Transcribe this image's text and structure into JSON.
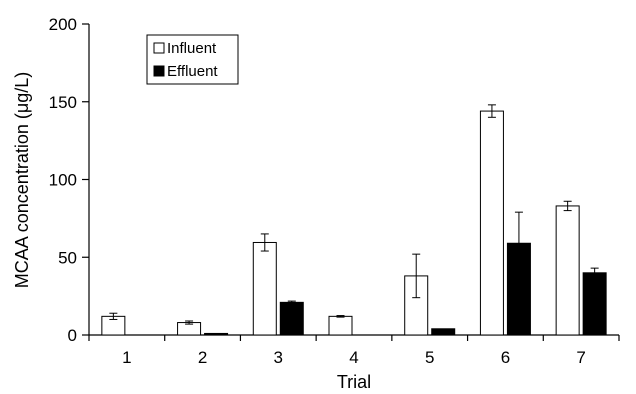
{
  "chart_data": {
    "type": "bar",
    "title": "",
    "xlabel": "Trial",
    "ylabel": "MCAA concentration (μg/L)",
    "ylim": [
      0,
      200
    ],
    "yticks": [
      0,
      50,
      100,
      150,
      200
    ],
    "categories": [
      "1",
      "2",
      "3",
      "4",
      "5",
      "6",
      "7"
    ],
    "grid": false,
    "legend_position": "top-left",
    "series": [
      {
        "name": "Influent",
        "color": "#ffffff",
        "values": [
          12,
          8,
          59.5,
          12,
          38,
          144,
          83
        ],
        "errors": [
          2,
          1,
          5.5,
          0.5,
          14,
          4,
          3
        ]
      },
      {
        "name": "Effluent",
        "color": "#000000",
        "values": [
          0,
          1,
          21,
          0,
          4,
          59,
          40
        ],
        "errors": [
          0,
          0,
          0.8,
          0,
          0,
          20,
          3
        ]
      }
    ]
  }
}
